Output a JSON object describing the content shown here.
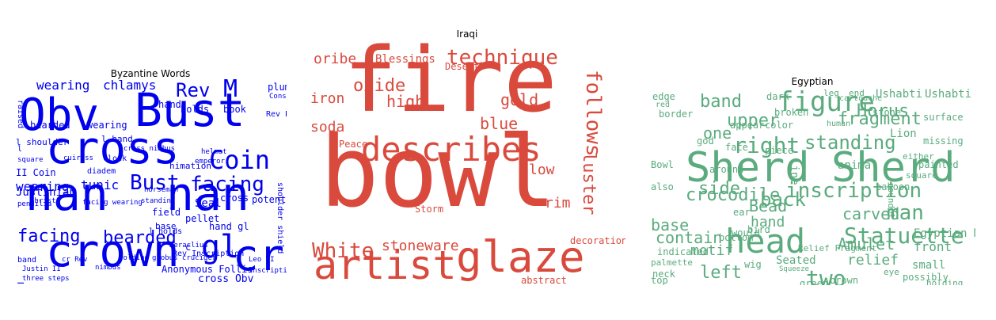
{
  "chart_data": [
    {
      "type": "wordcloud",
      "title": "Byzantine Words",
      "color": "#0000ee",
      "words": [
        "Obv",
        "Bust",
        "cross",
        "nan",
        "nan",
        "crown",
        "cr",
        "gl",
        "Coin",
        "Rev",
        "M",
        "facing",
        "bearded",
        "Bust",
        "facing",
        "wearing",
        "chlamys",
        "tunic",
        "wearing",
        "bearded",
        "wearing",
        "holds",
        "book",
        "Justinian",
        "II Coin",
        "Rev Cross",
        "Seal",
        "pellet",
        "cross",
        "potent",
        "Anonymous Follis",
        "cross Obv",
        "hand",
        "raised",
        "hand gl",
        "field",
        "base",
        "himation",
        "plume",
        "l shoulder",
        "l hand",
        "diadem",
        "cuirass",
        "Rev Inscription",
        "c",
        "l holds",
        "Christ",
        "square",
        "three steps",
        "Justin II",
        "band",
        "cloak",
        "shoulder shield",
        "cross nimbus",
        "horseman",
        "nimbus",
        "emperor",
        "l",
        "Constans II",
        "Heraclius",
        "facing wearing",
        "standing",
        "pendilia",
        "globus cruciger",
        "Leo VI",
        "holding",
        "Rev Bust",
        "Inscription",
        "cr Rev",
        "helmet"
      ]
    },
    {
      "type": "wordcloud",
      "title": "Iraqi",
      "color": "#d94a3d",
      "words": [
        "fire",
        "bowl",
        "glaze",
        "artist",
        "describes",
        "technique",
        "follows",
        "luster",
        "oxide",
        "high",
        "gold",
        "blue",
        "iron",
        "soda",
        "oribe",
        "Blessings",
        "Desert",
        "White",
        "stoneware",
        "low",
        "rim",
        "Storm",
        "Peace",
        "decoration",
        "abstract"
      ]
    },
    {
      "type": "wordcloud",
      "title": "Egyptian",
      "color": "#5aab7d",
      "words": [
        "Sherd",
        "Sherd",
        "head",
        "figure",
        "right",
        "standing",
        "inscription",
        "Statuette",
        "two",
        "man",
        "back",
        "crocodile",
        "side",
        "Horus",
        "fragment",
        "band",
        "upper",
        "left",
        "Bead",
        "Amulet",
        "relief",
        "carved",
        "front",
        "small",
        "animal",
        "base",
        "contain",
        "motif",
        "hand",
        "Ushabti",
        "Ushabti",
        "one",
        "Lion",
        "line",
        "surface",
        "Seated",
        "Relief Fragment",
        "Egyptian Manuscripts",
        "Squeeze",
        "possibly",
        "baboon",
        "color",
        "border",
        "bird",
        "dark",
        "broken",
        "face",
        "wig",
        "neck",
        "top",
        "green",
        "brown",
        "painted",
        "square",
        "Bowl",
        "piece",
        "stone",
        "edge",
        "god",
        "ear",
        "red",
        "human",
        "cartouche",
        "palmette",
        "indicated",
        "bottom",
        "roundel",
        "would",
        "missing",
        "appear",
        "around",
        "either",
        "also",
        "holding",
        "eye",
        "leg",
        "end",
        "four",
        "sons"
      ]
    }
  ]
}
